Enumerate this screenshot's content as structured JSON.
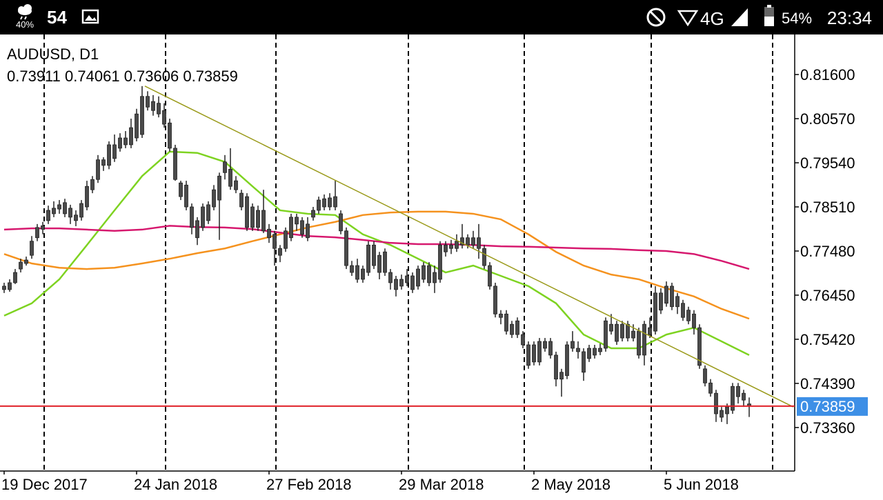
{
  "status_bar": {
    "weather": "40%",
    "temperature": "54",
    "network": "4G",
    "battery": "54%",
    "time": "23:34"
  },
  "chart_data": {
    "type": "candlestick",
    "title": "AUDUSD, D1",
    "ohlc_labels": [
      "0.73911",
      "0.74061",
      "0.73606",
      "0.73859"
    ],
    "bid": {
      "value": 0.73859,
      "label": "0.73859"
    },
    "up_color": "#4a4a4a",
    "down_color": "#4a4a4a",
    "xlim": [
      -0.75,
      143.25
    ],
    "xticks": [
      {
        "value": 0,
        "label": "19 Dec 2017"
      },
      {
        "value": 24,
        "label": "24 Jan 2018"
      },
      {
        "value": 48,
        "label": "27 Feb 2018"
      },
      {
        "value": 72,
        "label": "29 Mar 2018"
      },
      {
        "value": 96,
        "label": "2 May 2018"
      },
      {
        "value": 120,
        "label": "5 Jun 2018"
      }
    ],
    "ylim": [
      0.72344,
      0.82535
    ],
    "yticks": [
      {
        "value": 0.816,
        "label": "0.81600"
      },
      {
        "value": 0.8057,
        "label": "0.80570"
      },
      {
        "value": 0.7954,
        "label": "0.79540"
      },
      {
        "value": 0.7851,
        "label": "0.78510"
      },
      {
        "value": 0.7748,
        "label": "0.77480"
      },
      {
        "value": 0.7645,
        "label": "0.76450"
      },
      {
        "value": 0.7542,
        "label": "0.75420"
      },
      {
        "value": 0.7439,
        "label": "0.74390"
      },
      {
        "value": 0.7336,
        "label": "0.73360"
      }
    ],
    "candles": [
      [
        0.7658,
        0.7674,
        0.765,
        0.7666
      ],
      [
        0.7658,
        0.7682,
        0.7653,
        0.7674
      ],
      [
        0.7674,
        0.7706,
        0.7671,
        0.7698
      ],
      [
        0.7706,
        0.773,
        0.7698,
        0.7722
      ],
      [
        0.7719,
        0.7735,
        0.7714,
        0.7727
      ],
      [
        0.7738,
        0.7783,
        0.773,
        0.7771
      ],
      [
        0.7779,
        0.7811,
        0.7771,
        0.7803
      ],
      [
        0.7807,
        0.7816,
        0.7787,
        0.7799
      ],
      [
        0.7819,
        0.7854,
        0.7811,
        0.7843
      ],
      [
        0.7835,
        0.7864,
        0.7827,
        0.7848
      ],
      [
        0.7856,
        0.7867,
        0.7835,
        0.7846
      ],
      [
        0.7861,
        0.787,
        0.7827,
        0.7835
      ],
      [
        0.7848,
        0.7856,
        0.7811,
        0.7827
      ],
      [
        0.7832,
        0.7843,
        0.7806,
        0.7819
      ],
      [
        0.7827,
        0.7867,
        0.7819,
        0.7859
      ],
      [
        0.7851,
        0.7912,
        0.7843,
        0.7899
      ],
      [
        0.7891,
        0.7923,
        0.7883,
        0.7915
      ],
      [
        0.7915,
        0.7972,
        0.7907,
        0.7961
      ],
      [
        0.7961,
        0.7967,
        0.7935,
        0.7948
      ],
      [
        0.7948,
        0.8004,
        0.7939,
        0.7996
      ],
      [
        0.7996,
        0.802,
        0.7956,
        0.7964
      ],
      [
        0.7988,
        0.8023,
        0.798,
        0.8012
      ],
      [
        0.8012,
        0.8028,
        0.7988,
        0.7996
      ],
      [
        0.7996,
        0.8057,
        0.7988,
        0.8036
      ],
      [
        0.8012,
        0.808,
        0.8004,
        0.8068
      ],
      [
        0.802,
        0.8133,
        0.8012,
        0.8109
      ],
      [
        0.8109,
        0.8121,
        0.8076,
        0.8084
      ],
      [
        0.8097,
        0.8112,
        0.8064,
        0.8076
      ],
      [
        0.8068,
        0.8109,
        0.806,
        0.8093
      ],
      [
        0.8076,
        0.8093,
        0.8036,
        0.8044
      ],
      [
        0.8047,
        0.8057,
        0.798,
        0.7988
      ],
      [
        0.7988,
        0.7996,
        0.7912,
        0.7915
      ],
      [
        0.7907,
        0.7912,
        0.7867,
        0.7875
      ],
      [
        0.7902,
        0.7912,
        0.7843,
        0.7851
      ],
      [
        0.7851,
        0.7859,
        0.7787,
        0.7803
      ],
      [
        0.7819,
        0.7827,
        0.7762,
        0.7779
      ],
      [
        0.7803,
        0.7859,
        0.7795,
        0.7851
      ],
      [
        0.7856,
        0.7864,
        0.7811,
        0.7819
      ],
      [
        0.7851,
        0.7902,
        0.7843,
        0.7891
      ],
      [
        0.7867,
        0.7931,
        0.7774,
        0.7923
      ],
      [
        0.7931,
        0.7972,
        0.7915,
        0.7956
      ],
      [
        0.7939,
        0.7988,
        0.7891,
        0.7899
      ],
      [
        0.7912,
        0.7923,
        0.7883,
        0.7891
      ],
      [
        0.7883,
        0.7891,
        0.7843,
        0.7851
      ],
      [
        0.7875,
        0.7883,
        0.7795,
        0.7803
      ],
      [
        0.7803,
        0.7859,
        0.7795,
        0.7851
      ],
      [
        0.7803,
        0.7854,
        0.7795,
        0.7843
      ],
      [
        0.7843,
        0.7891,
        0.779,
        0.7795
      ],
      [
        0.7799,
        0.7811,
        0.7767,
        0.7779
      ],
      [
        0.7787,
        0.7795,
        0.7714,
        0.7754
      ],
      [
        0.7754,
        0.7762,
        0.7722,
        0.7738
      ],
      [
        0.7754,
        0.7803,
        0.7746,
        0.7795
      ],
      [
        0.7779,
        0.7835,
        0.7771,
        0.7827
      ],
      [
        0.7827,
        0.7835,
        0.7795,
        0.7811
      ],
      [
        0.7819,
        0.7827,
        0.7779,
        0.7787
      ],
      [
        0.7779,
        0.7827,
        0.7771,
        0.7811
      ],
      [
        0.7827,
        0.7851,
        0.7819,
        0.7843
      ],
      [
        0.7843,
        0.7875,
        0.7835,
        0.7867
      ],
      [
        0.787,
        0.788,
        0.7843,
        0.7851
      ],
      [
        0.7851,
        0.7883,
        0.7843,
        0.7872
      ],
      [
        0.7875,
        0.7912,
        0.7843,
        0.7851
      ],
      [
        0.7835,
        0.7843,
        0.7787,
        0.7795
      ],
      [
        0.7795,
        0.7803,
        0.7706,
        0.7714
      ],
      [
        0.7714,
        0.7725,
        0.769,
        0.7698
      ],
      [
        0.7714,
        0.773,
        0.7674,
        0.7682
      ],
      [
        0.7682,
        0.7714,
        0.7674,
        0.7706
      ],
      [
        0.7698,
        0.7771,
        0.769,
        0.7762
      ],
      [
        0.7762,
        0.7771,
        0.7706,
        0.7714
      ],
      [
        0.7738,
        0.7746,
        0.7682,
        0.7698
      ],
      [
        0.7698,
        0.7754,
        0.769,
        0.7746
      ],
      [
        0.7698,
        0.7706,
        0.7658,
        0.7674
      ],
      [
        0.7682,
        0.769,
        0.7642,
        0.7658
      ],
      [
        0.7666,
        0.7693,
        0.7658,
        0.7682
      ],
      [
        0.7674,
        0.7706,
        0.7666,
        0.769
      ],
      [
        0.769,
        0.7698,
        0.765,
        0.7658
      ],
      [
        0.7666,
        0.7714,
        0.7658,
        0.7706
      ],
      [
        0.7714,
        0.7722,
        0.7674,
        0.7682
      ],
      [
        0.7714,
        0.7722,
        0.7666,
        0.7674
      ],
      [
        0.7674,
        0.7714,
        0.765,
        0.7698
      ],
      [
        0.7682,
        0.7771,
        0.7674,
        0.7762
      ],
      [
        0.7762,
        0.7771,
        0.7735,
        0.7746
      ],
      [
        0.7754,
        0.7774,
        0.7741,
        0.7762
      ],
      [
        0.7754,
        0.7787,
        0.7746,
        0.7771
      ],
      [
        0.7762,
        0.7811,
        0.7754,
        0.7779
      ],
      [
        0.7779,
        0.7787,
        0.7754,
        0.7762
      ],
      [
        0.7762,
        0.7795,
        0.7754,
        0.7779
      ],
      [
        0.7779,
        0.7811,
        0.773,
        0.7754
      ],
      [
        0.7754,
        0.7762,
        0.7706,
        0.7714
      ],
      [
        0.7714,
        0.7722,
        0.7658,
        0.7666
      ],
      [
        0.7666,
        0.7674,
        0.7593,
        0.7601
      ],
      [
        0.7601,
        0.761,
        0.7577,
        0.7593
      ],
      [
        0.7601,
        0.761,
        0.7553,
        0.7561
      ],
      [
        0.7577,
        0.7585,
        0.7545,
        0.7553
      ],
      [
        0.7553,
        0.7593,
        0.7545,
        0.7585
      ],
      [
        0.7553,
        0.7561,
        0.7521,
        0.7529
      ],
      [
        0.7529,
        0.7537,
        0.7473,
        0.7481
      ],
      [
        0.7489,
        0.7537,
        0.7481,
        0.7529
      ],
      [
        0.7537,
        0.7545,
        0.7481,
        0.7489
      ],
      [
        0.7521,
        0.7545,
        0.7513,
        0.7537
      ],
      [
        0.7537,
        0.7545,
        0.7497,
        0.7505
      ],
      [
        0.7505,
        0.7513,
        0.7432,
        0.7449
      ],
      [
        0.7449,
        0.7473,
        0.7408,
        0.7465
      ],
      [
        0.7457,
        0.7537,
        0.7449,
        0.7529
      ],
      [
        0.7537,
        0.7561,
        0.7513,
        0.7521
      ],
      [
        0.7521,
        0.7537,
        0.7497,
        0.7513
      ],
      [
        0.7513,
        0.7521,
        0.7445,
        0.7465
      ],
      [
        0.7497,
        0.7529,
        0.7489,
        0.7521
      ],
      [
        0.7521,
        0.7529,
        0.7497,
        0.7505
      ],
      [
        0.7513,
        0.7532,
        0.7505,
        0.7521
      ],
      [
        0.7521,
        0.7593,
        0.7513,
        0.7585
      ],
      [
        0.7577,
        0.7601,
        0.7553,
        0.7561
      ],
      [
        0.7577,
        0.7585,
        0.7529,
        0.7537
      ],
      [
        0.7545,
        0.7585,
        0.7537,
        0.7577
      ],
      [
        0.7577,
        0.7585,
        0.7537,
        0.7545
      ],
      [
        0.7545,
        0.7577,
        0.7537,
        0.7561
      ],
      [
        0.7561,
        0.7569,
        0.7497,
        0.7505
      ],
      [
        0.7505,
        0.7585,
        0.7481,
        0.7577
      ],
      [
        0.7569,
        0.7593,
        0.7545,
        0.7553
      ],
      [
        0.7561,
        0.7666,
        0.7553,
        0.765
      ],
      [
        0.765,
        0.7661,
        0.7601,
        0.761
      ],
      [
        0.7626,
        0.7677,
        0.7618,
        0.7666
      ],
      [
        0.7666,
        0.7674,
        0.761,
        0.7618
      ],
      [
        0.7618,
        0.765,
        0.7601,
        0.7642
      ],
      [
        0.7626,
        0.7634,
        0.7585,
        0.7593
      ],
      [
        0.761,
        0.7618,
        0.7577,
        0.7585
      ],
      [
        0.7601,
        0.761,
        0.7553,
        0.7569
      ],
      [
        0.7569,
        0.7577,
        0.7473,
        0.7481
      ],
      [
        0.7473,
        0.7481,
        0.7432,
        0.744
      ],
      [
        0.744,
        0.7449,
        0.7408,
        0.7416
      ],
      [
        0.7416,
        0.7424,
        0.7349,
        0.7368
      ],
      [
        0.736,
        0.7384,
        0.7349,
        0.7376
      ],
      [
        0.7368,
        0.7392,
        0.7344,
        0.7384
      ],
      [
        0.7376,
        0.744,
        0.7368,
        0.7432
      ],
      [
        0.7432,
        0.744,
        0.7392,
        0.7408
      ],
      [
        0.7416,
        0.7424,
        0.7384,
        0.74
      ],
      [
        0.73911,
        0.74061,
        0.73606,
        0.73859
      ]
    ],
    "indicators": [
      {
        "color": "#7ed321",
        "x": [
          0,
          5,
          10,
          15,
          20,
          25,
          30,
          35,
          40,
          45,
          50,
          55,
          60,
          65,
          70,
          75,
          80,
          85,
          90,
          95,
          100,
          105,
          110,
          115,
          120,
          125,
          130,
          135
        ],
        "values": [
          0.7597,
          0.7626,
          0.7682,
          0.7762,
          0.7843,
          0.7923,
          0.798,
          0.7977,
          0.7956,
          0.7899,
          0.7843,
          0.7835,
          0.7832,
          0.7787,
          0.7762,
          0.773,
          0.7698,
          0.7714,
          0.769,
          0.7666,
          0.7626,
          0.7553,
          0.7521,
          0.7521,
          0.7553,
          0.7569,
          0.7537,
          0.7505
        ]
      },
      {
        "color": "#f5921e",
        "x": [
          0,
          5,
          10,
          15,
          20,
          25,
          30,
          35,
          40,
          45,
          50,
          55,
          60,
          65,
          70,
          75,
          80,
          85,
          90,
          95,
          100,
          105,
          110,
          115,
          120,
          125,
          130,
          135
        ],
        "values": [
          0.7741,
          0.7719,
          0.7709,
          0.7706,
          0.7709,
          0.7719,
          0.773,
          0.7743,
          0.7754,
          0.7771,
          0.7787,
          0.7803,
          0.7816,
          0.7832,
          0.7838,
          0.784,
          0.784,
          0.7835,
          0.7822,
          0.7787,
          0.7746,
          0.7714,
          0.7693,
          0.7682,
          0.7661,
          0.7642,
          0.7613,
          0.759
        ]
      },
      {
        "color": "#d6186e",
        "x": [
          0,
          5,
          10,
          15,
          20,
          25,
          30,
          35,
          40,
          45,
          50,
          55,
          60,
          65,
          70,
          75,
          80,
          85,
          90,
          95,
          100,
          105,
          110,
          115,
          120,
          125,
          130,
          135
        ],
        "values": [
          0.7798,
          0.7801,
          0.7801,
          0.7798,
          0.7795,
          0.7798,
          0.7807,
          0.7804,
          0.7803,
          0.7799,
          0.7791,
          0.7783,
          0.778,
          0.7774,
          0.7767,
          0.7764,
          0.7764,
          0.7762,
          0.7759,
          0.7758,
          0.7756,
          0.7754,
          0.7753,
          0.775,
          0.7748,
          0.7741,
          0.7725,
          0.7706
        ]
      }
    ],
    "trendline": {
      "color": "#9a9a1a",
      "x": [
        25.5,
        143
      ],
      "values": [
        0.8133,
        0.7384
      ]
    },
    "bid_color": "#e02028",
    "bid_label_color": "#3d8fe6"
  }
}
